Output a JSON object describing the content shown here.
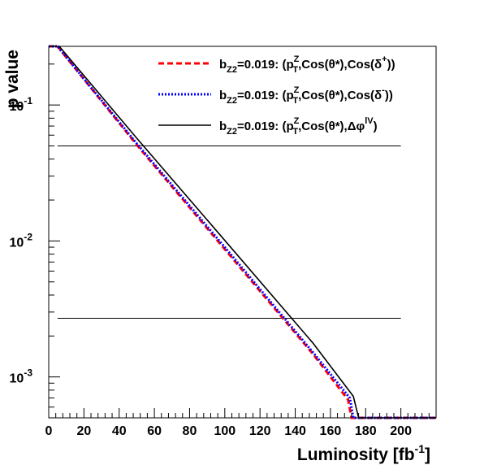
{
  "chart_data": {
    "type": "line",
    "title": "",
    "xlabel": "Luminosity [fb",
    "xlabel_sup": "-1",
    "xlabel_close": "]",
    "ylabel": "p value",
    "x_scale": "linear",
    "y_scale": "log",
    "xlim": [
      0,
      220
    ],
    "ylim": [
      0.0005,
      0.27
    ],
    "x_ticks": [
      0,
      20,
      40,
      60,
      80,
      100,
      120,
      140,
      160,
      180,
      200
    ],
    "x_tick_labels": [
      "0",
      "20",
      "40",
      "60",
      "80",
      "100",
      "120",
      "140",
      "160",
      "180",
      "200"
    ],
    "y_major_ticks": [
      0.001,
      0.01,
      0.1
    ],
    "y_tick_labels": [
      {
        "value": 0.1,
        "base": "10",
        "exp": "-1"
      },
      {
        "value": 0.01,
        "base": "10",
        "exp": "-2"
      },
      {
        "value": 0.001,
        "base": "10",
        "exp": "-3"
      }
    ],
    "grid": false,
    "legend_position": "top-right",
    "reference_lines": [
      {
        "y": 0.05,
        "x_range": [
          5,
          200
        ],
        "color": "#000000"
      },
      {
        "y": 0.0027,
        "x_range": [
          5,
          200
        ],
        "color": "#000000"
      }
    ],
    "series": [
      {
        "legend": {
          "b": "b",
          "bsub": "Z2",
          "mid": "=0.019: (p",
          "psup": "Z",
          "psub": "T",
          "tail": ",Cos(θ*),Cos(δ",
          "tsup": "+",
          "end": "))"
        },
        "color": "#ff0000",
        "style": "dashed",
        "x": [
          0,
          5,
          50,
          100,
          150,
          170,
          172,
          220
        ],
        "y": [
          0.27,
          0.27,
          0.051,
          0.0087,
          0.00148,
          0.00068,
          0.0005,
          0.0005
        ]
      },
      {
        "legend": {
          "b": "b",
          "bsub": "Z2",
          "mid": "=0.019: (p",
          "psup": "Z",
          "psub": "T",
          "tail": ",Cos(θ*),Cos(δ",
          "tsup": "-",
          "end": "))"
        },
        "color": "#0000ff",
        "style": "dotted",
        "x": [
          0,
          5,
          50,
          100,
          150,
          171,
          173,
          220
        ],
        "y": [
          0.27,
          0.27,
          0.052,
          0.009,
          0.00152,
          0.0007,
          0.0005,
          0.0005
        ]
      },
      {
        "legend": {
          "b": "b",
          "bsub": "Z2",
          "mid": "=0.019: (p",
          "psup": "Z",
          "psub": "T",
          "tail": ",Cos(θ*),Δφ",
          "tsup": "lV",
          "end": ")"
        },
        "color": "#000000",
        "style": "solid",
        "x": [
          0,
          6,
          50,
          100,
          150,
          173,
          176,
          220
        ],
        "y": [
          0.27,
          0.27,
          0.057,
          0.0101,
          0.00178,
          0.00072,
          0.0005,
          0.0005
        ]
      }
    ]
  }
}
